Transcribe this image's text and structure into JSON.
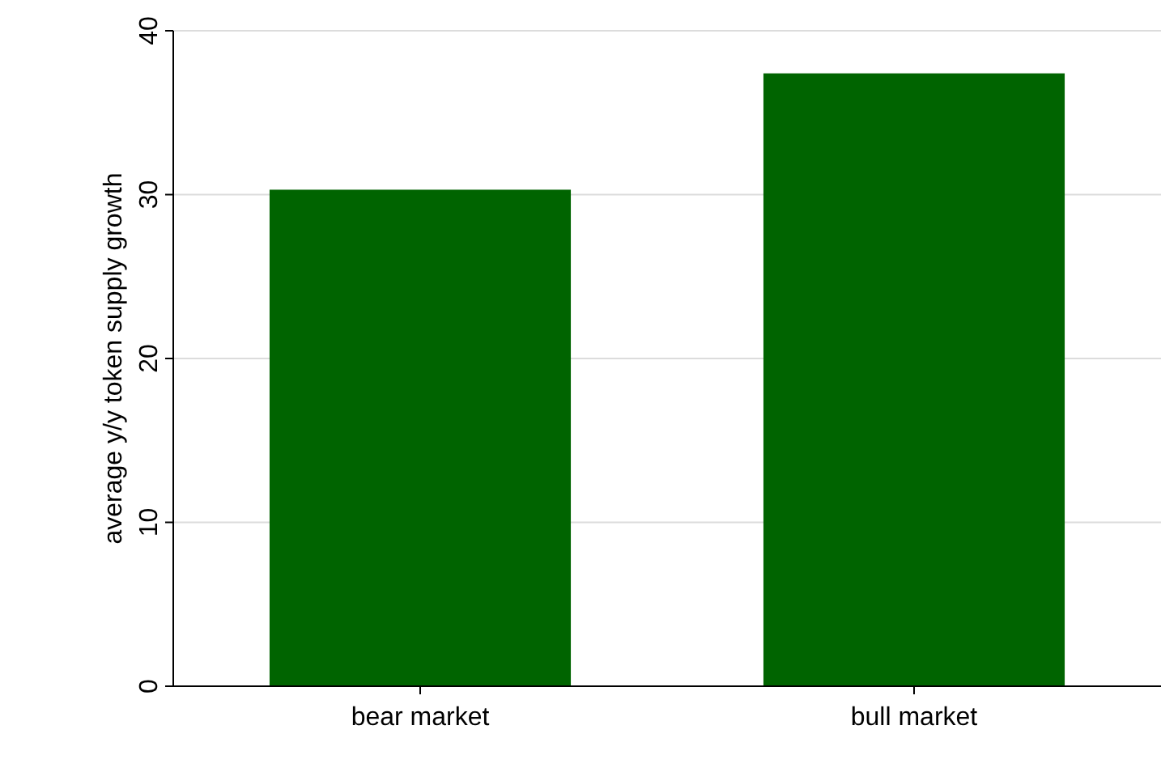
{
  "chart_data": {
    "type": "bar",
    "ylabel": "average y/y token supply growth",
    "categories": [
      "bear market",
      "bull market"
    ],
    "values": [
      30.3,
      37.4
    ],
    "color": "#006400",
    "ylim": [
      0,
      40
    ],
    "yticks": [
      0,
      10,
      20,
      30,
      40
    ],
    "grid": "y"
  }
}
